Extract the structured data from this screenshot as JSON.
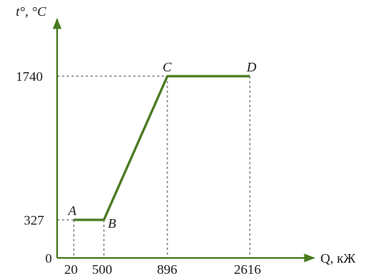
{
  "chart_data": {
    "type": "line",
    "title": "",
    "ylabel": "t°, °C",
    "xlabel": "Q, кЖ",
    "origin_label": "0",
    "points": [
      {
        "label": "A",
        "q": 20,
        "t": 327
      },
      {
        "label": "B",
        "q": 500,
        "t": 327
      },
      {
        "label": "C",
        "q": 896,
        "t": 1740
      },
      {
        "label": "D",
        "q": 2616,
        "t": 1740
      }
    ],
    "x_tick_labels": [
      "20",
      "500",
      "896",
      "2616"
    ],
    "y_tick_labels": [
      "327",
      "1740"
    ],
    "x_scale": "non-uniform (tick positions not proportional)",
    "ylim": [
      0,
      1740
    ],
    "grid": false,
    "guide_lines": "dashed",
    "colors": {
      "line": "#4a7a1f",
      "axis": "#4a7a1f",
      "guide": "#555555",
      "text": "#1a1a1a"
    }
  }
}
